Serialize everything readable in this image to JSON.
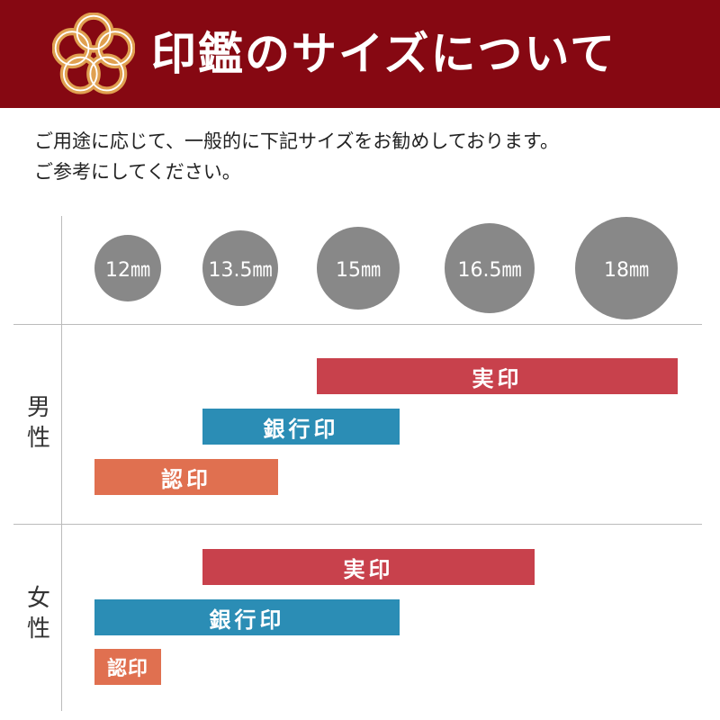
{
  "header": {
    "title": "印鑑のサイズについて",
    "logo": "mizuhiki-knot"
  },
  "intro": {
    "line1": "ご用途に応じて、一般的に下記サイズをお勧めしております。",
    "line2": "ご参考にしてください。"
  },
  "colors": {
    "header": "#860812",
    "jitsuin": "#c8414c",
    "ginkoin": "#2b8db5",
    "mitomein": "#e07050",
    "circle": "#888888"
  },
  "chart_data": {
    "type": "range-bar",
    "sizes": [
      "12㎜",
      "13.5㎜",
      "15㎜",
      "16.5㎜",
      "18㎜"
    ],
    "size_values": [
      12,
      13.5,
      15,
      16.5,
      18
    ],
    "groups": [
      {
        "label": "男性",
        "bars": [
          {
            "name": "実印",
            "from": 15,
            "to": 18,
            "color": "#c8414c"
          },
          {
            "name": "銀行印",
            "from": 13.5,
            "to": 15,
            "color": "#2b8db5"
          },
          {
            "name": "認印",
            "from": 12,
            "to": 13.5,
            "color": "#e07050"
          }
        ]
      },
      {
        "label": "女性",
        "bars": [
          {
            "name": "実印",
            "from": 13.5,
            "to": 16.5,
            "color": "#c8414c"
          },
          {
            "name": "銀行印",
            "from": 12,
            "to": 15,
            "color": "#2b8db5"
          },
          {
            "name": "認印",
            "from": 12,
            "to": 12,
            "color": "#e07050"
          }
        ]
      }
    ]
  }
}
